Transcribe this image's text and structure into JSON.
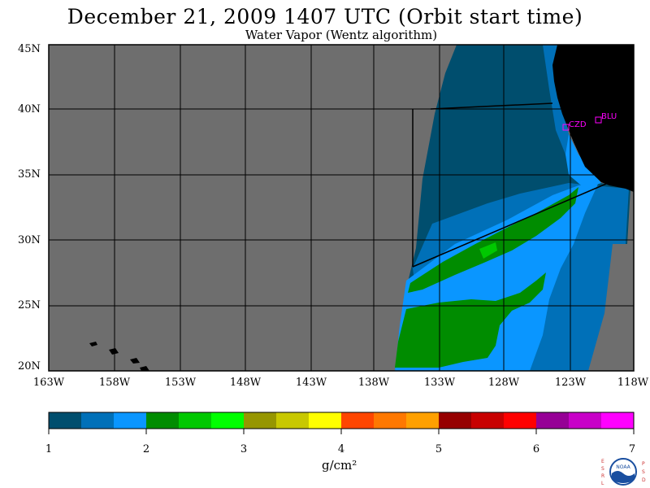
{
  "title": "December 21, 2009  1407 UTC  (Orbit start time)",
  "subtitle": "Water Vapor (Wentz algorithm)",
  "lat_labels": [
    "45N",
    "40N",
    "35N",
    "30N",
    "25N",
    "20N"
  ],
  "lon_labels": [
    "163W",
    "158W",
    "153W",
    "148W",
    "143W",
    "138W",
    "133W",
    "128W",
    "123W",
    "118W"
  ],
  "stations": [
    {
      "name": "CZD"
    },
    {
      "name": "BLU"
    }
  ],
  "colorbar": {
    "labels": [
      "1",
      "2",
      "3",
      "4",
      "5",
      "6",
      "7"
    ],
    "unit": "g/cm²",
    "colors": [
      "#004e6e",
      "#0070b8",
      "#0a96ff",
      "#008c00",
      "#00c800",
      "#00ff00",
      "#969600",
      "#c8c800",
      "#ffff00",
      "#ff4600",
      "#ff7800",
      "#ffa000",
      "#960000",
      "#c80000",
      "#ff0000",
      "#960096",
      "#c800c8",
      "#ff00ff"
    ]
  },
  "logo": {
    "left_letters": "ESRL",
    "right_letters": "PSD",
    "center_text": "NOAA"
  },
  "colors": {
    "nodata": "#6e6e6e",
    "land": "#000000",
    "vapor_low": "#004e6e",
    "vapor_mid": "#0070b8",
    "vapor_light": "#0a96ff",
    "vapor_green": "#008c00"
  }
}
